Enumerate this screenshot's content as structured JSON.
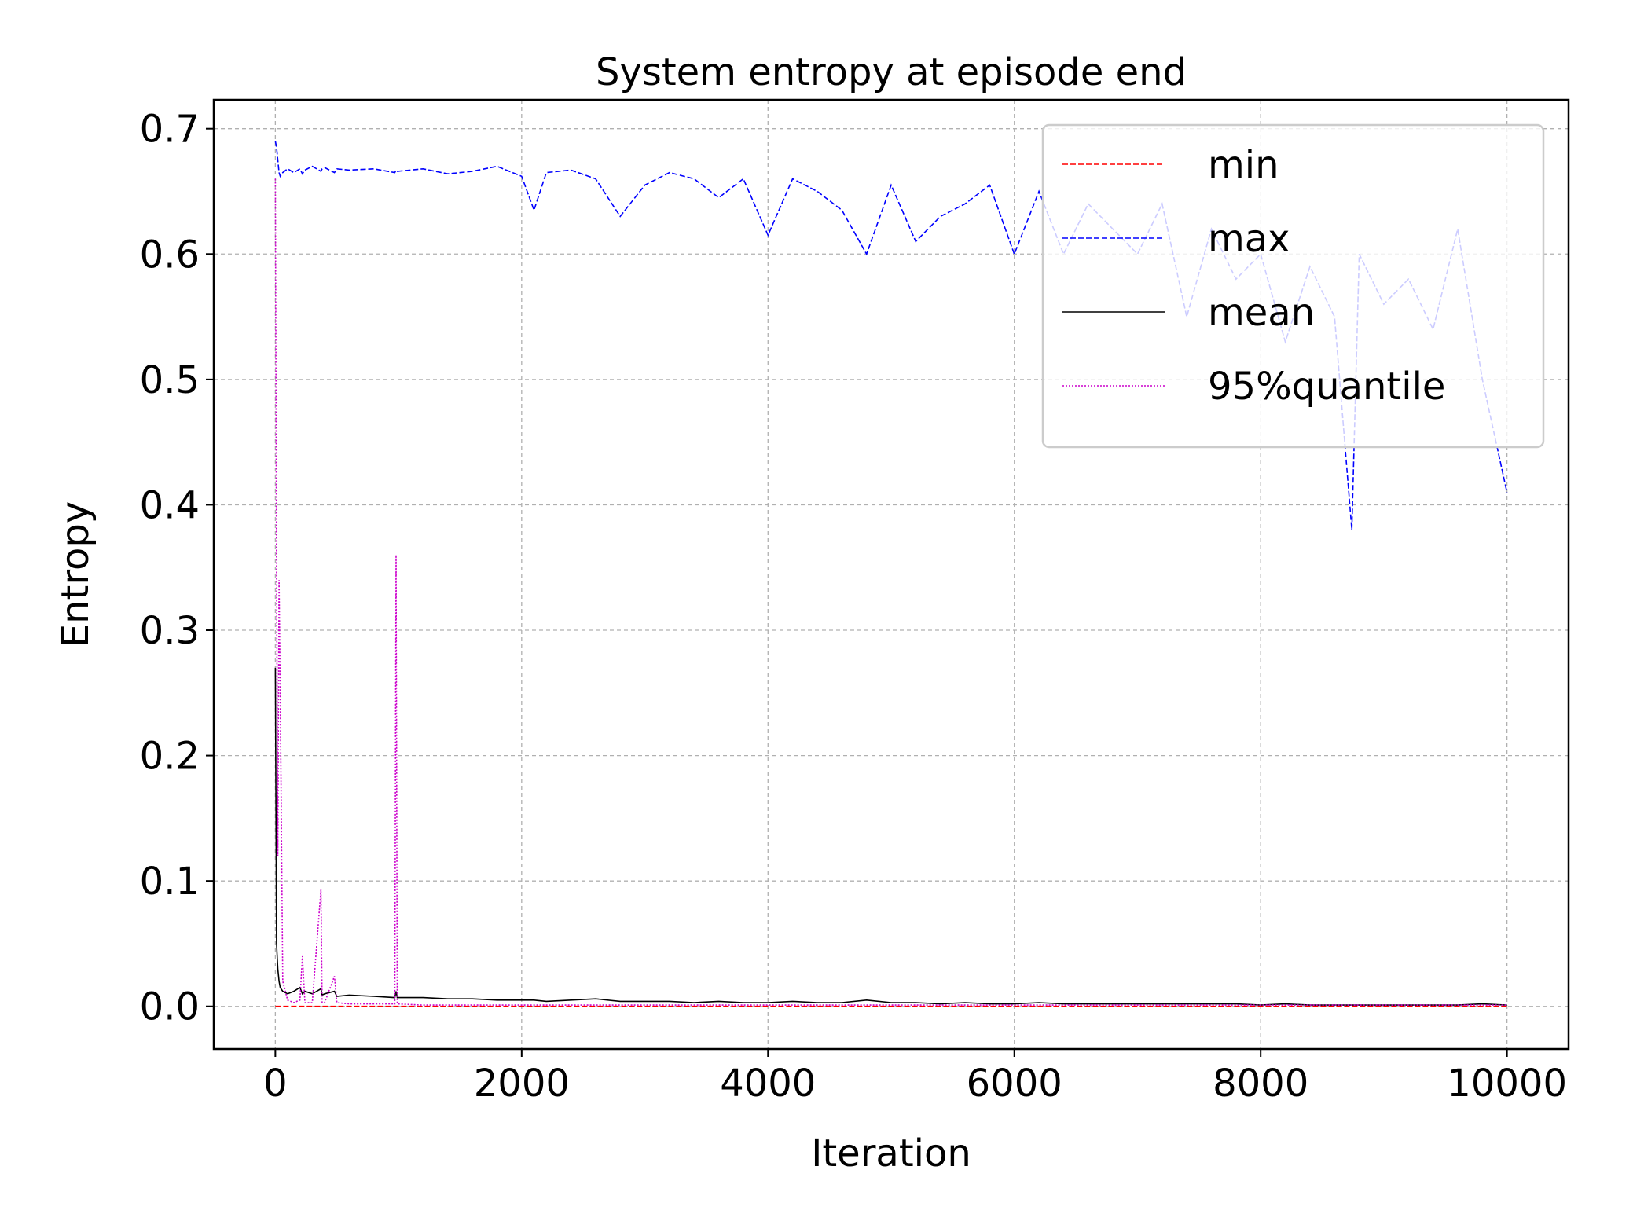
{
  "chart_data": {
    "type": "line",
    "title": "System entropy at episode end",
    "xlabel": "Iteration",
    "ylabel": "Entropy",
    "x": [
      0,
      10,
      20,
      30,
      40,
      60,
      100,
      150,
      200,
      220,
      240,
      300,
      370,
      380,
      400,
      480,
      500,
      600,
      800,
      970,
      980,
      990,
      1200,
      1400,
      1600,
      1800,
      2000,
      2100,
      2200,
      2400,
      2600,
      2800,
      3000,
      3200,
      3400,
      3600,
      3800,
      4000,
      4200,
      4400,
      4600,
      4800,
      5000,
      5200,
      5400,
      5600,
      5800,
      6000,
      6200,
      6400,
      6600,
      6800,
      7000,
      7200,
      7400,
      7600,
      7800,
      8000,
      8200,
      8400,
      8600,
      8740,
      8800,
      9000,
      9200,
      9400,
      9600,
      9800,
      10000
    ],
    "series": [
      {
        "name": "min",
        "color": "#ff0000",
        "dash": "dashed",
        "values": [
          0,
          0,
          0,
          0,
          0,
          0,
          0,
          0,
          0,
          0,
          0,
          0,
          0,
          0,
          0,
          0,
          0,
          0,
          0,
          0,
          0,
          0,
          0,
          0,
          0,
          0,
          0,
          0,
          0,
          0,
          0,
          0,
          0,
          0,
          0,
          0,
          0,
          0,
          0,
          0,
          0,
          0,
          0,
          0,
          0,
          0,
          0,
          0,
          0,
          0,
          0,
          0,
          0,
          0,
          0,
          0,
          0,
          0,
          0,
          0,
          0,
          0,
          0,
          0,
          0,
          0,
          0,
          0,
          0
        ]
      },
      {
        "name": "max",
        "color": "#0000ff",
        "dash": "dashed",
        "values": [
          0.69,
          0.685,
          0.675,
          0.665,
          0.662,
          0.665,
          0.668,
          0.665,
          0.668,
          0.664,
          0.667,
          0.67,
          0.666,
          0.668,
          0.669,
          0.665,
          0.668,
          0.667,
          0.668,
          0.665,
          0.667,
          0.666,
          0.668,
          0.664,
          0.666,
          0.67,
          0.662,
          0.635,
          0.665,
          0.667,
          0.66,
          0.63,
          0.655,
          0.665,
          0.66,
          0.645,
          0.66,
          0.615,
          0.66,
          0.65,
          0.635,
          0.6,
          0.655,
          0.61,
          0.63,
          0.64,
          0.655,
          0.6,
          0.65,
          0.6,
          0.64,
          0.62,
          0.6,
          0.64,
          0.55,
          0.62,
          0.58,
          0.6,
          0.53,
          0.59,
          0.55,
          0.38,
          0.6,
          0.56,
          0.58,
          0.54,
          0.62,
          0.5,
          0.41
        ]
      },
      {
        "name": "mean",
        "color": "#000000",
        "dash": "solid",
        "values": [
          0.27,
          0.05,
          0.03,
          0.02,
          0.015,
          0.012,
          0.01,
          0.012,
          0.015,
          0.01,
          0.012,
          0.01,
          0.014,
          0.009,
          0.01,
          0.012,
          0.008,
          0.009,
          0.008,
          0.007,
          0.012,
          0.007,
          0.007,
          0.006,
          0.006,
          0.005,
          0.005,
          0.005,
          0.004,
          0.005,
          0.006,
          0.004,
          0.004,
          0.004,
          0.003,
          0.004,
          0.003,
          0.003,
          0.004,
          0.003,
          0.003,
          0.005,
          0.003,
          0.003,
          0.002,
          0.003,
          0.002,
          0.002,
          0.003,
          0.002,
          0.002,
          0.002,
          0.002,
          0.002,
          0.002,
          0.002,
          0.002,
          0.001,
          0.002,
          0.001,
          0.001,
          0.001,
          0.001,
          0.001,
          0.001,
          0.001,
          0.001,
          0.002,
          0.001
        ]
      },
      {
        "name": "95%quantile",
        "color": "#cc00cc",
        "dash": "dotted",
        "values": [
          0.66,
          0.35,
          0.12,
          0.34,
          0.25,
          0.02,
          0.005,
          0.003,
          0.005,
          0.04,
          0.003,
          0.003,
          0.093,
          0.003,
          0.003,
          0.024,
          0.003,
          0.002,
          0.002,
          0.002,
          0.36,
          0.002,
          0.001,
          0.001,
          0.001,
          0.001,
          0.001,
          0.001,
          0.001,
          0.001,
          0.001,
          0.001,
          0.001,
          0.001,
          0.001,
          0.001,
          0.001,
          0.001,
          0.001,
          0.001,
          0.001,
          0.001,
          0.001,
          0.001,
          0.001,
          0.001,
          0.001,
          0.001,
          0.001,
          0.001,
          0.001,
          0.001,
          0.001,
          0.001,
          0.001,
          0.001,
          0.001,
          0.001,
          0.001,
          0.001,
          0.001,
          0.001,
          0.001,
          0.001,
          0.001,
          0.001,
          0.001,
          0.001,
          0.001
        ]
      }
    ],
    "xlim": [
      -500,
      10500
    ],
    "ylim": [
      -0.034,
      0.723
    ],
    "xticks": [
      0,
      2000,
      4000,
      6000,
      8000,
      10000
    ],
    "yticks": [
      {
        "value": 0,
        "label": "0.0"
      },
      0.1,
      0.2,
      0.3,
      0.4,
      0.5,
      0.6,
      0.7
    ],
    "grid": true,
    "legend": "upper right"
  }
}
